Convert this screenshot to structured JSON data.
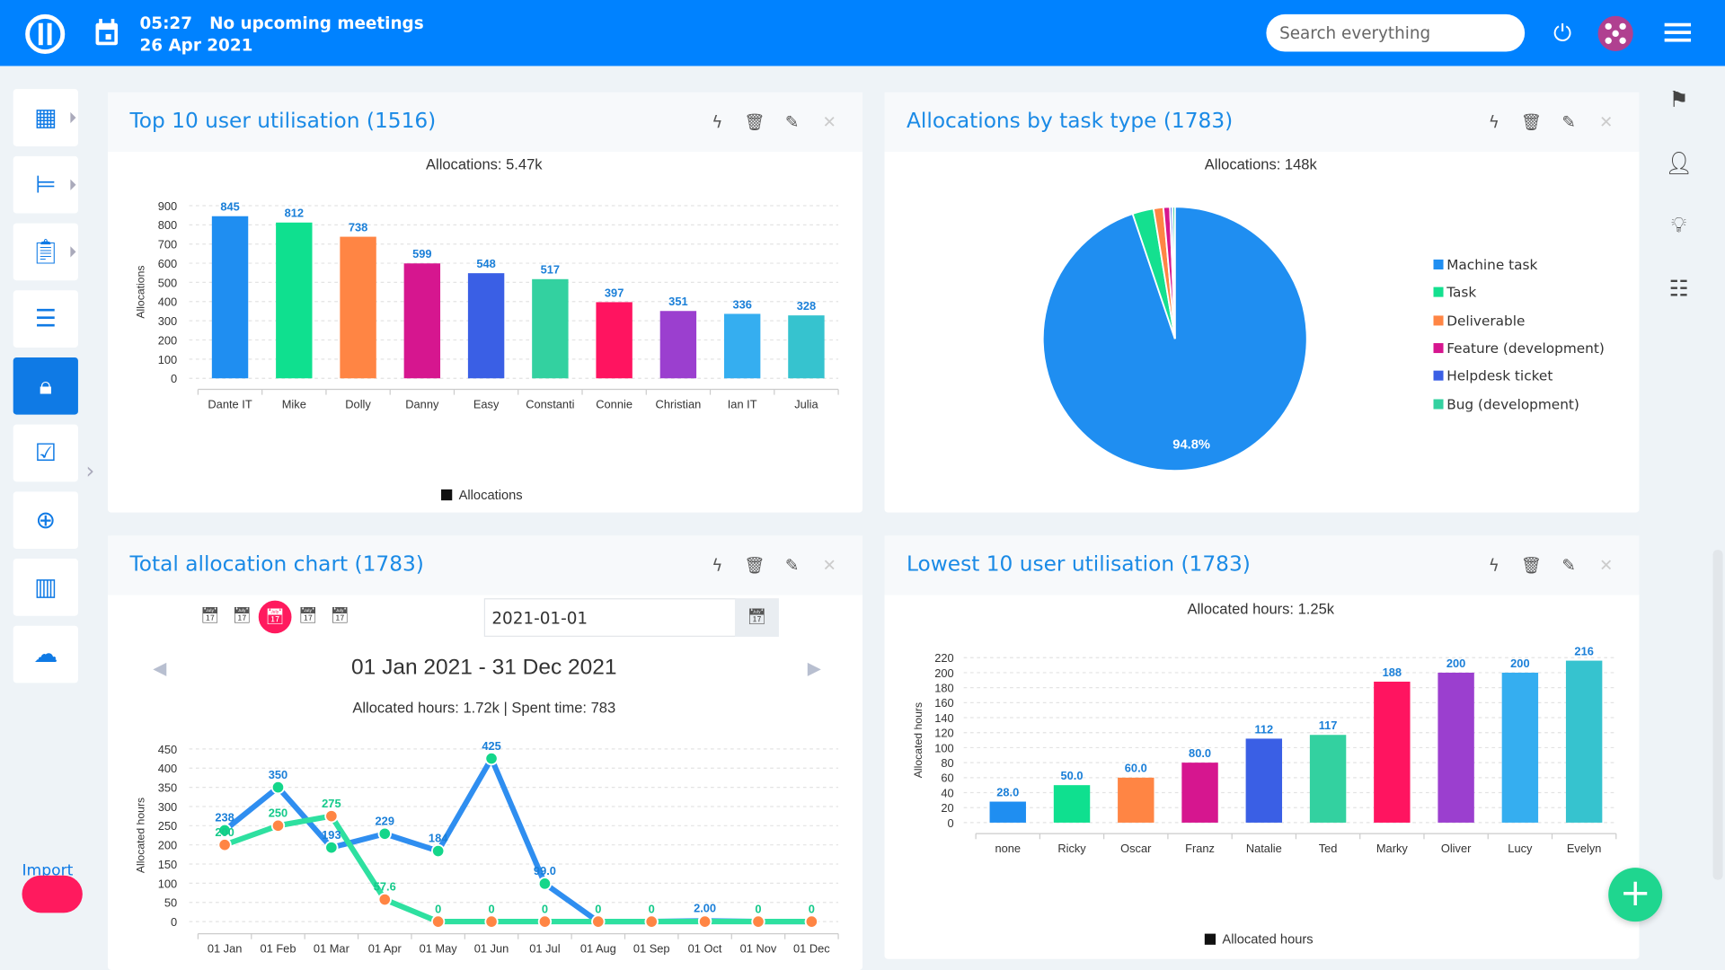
{
  "header": {
    "time": "05:27",
    "meetings": "No upcoming meetings",
    "date": "26 Apr 2021",
    "search_placeholder": "Search everything"
  },
  "sidebar": {
    "items": [
      {
        "name": "dashboard",
        "icon": "dashboard-icon"
      },
      {
        "name": "projects",
        "icon": "tree-icon"
      },
      {
        "name": "tasks",
        "icon": "clipboard-icon"
      },
      {
        "name": "checklist",
        "icon": "list-check-icon"
      },
      {
        "name": "administration",
        "icon": "lock-icon",
        "active": true
      },
      {
        "name": "todo",
        "icon": "check-square-icon"
      },
      {
        "name": "alarm",
        "icon": "alarm-plus-icon"
      },
      {
        "name": "reports",
        "icon": "bar-chart-icon"
      },
      {
        "name": "cloud",
        "icon": "cloud-icon"
      }
    ],
    "import_label": "Import"
  },
  "colors": {
    "brand": "#0082ff",
    "accent_pink": "#ff1a5e",
    "fab": "#1fd68f"
  },
  "panels": {
    "top_left": {
      "title": "Top 10 user utilisation (1516)"
    },
    "top_right": {
      "title": "Allocations by task type (1783)"
    },
    "bottom_left": {
      "title": "Total allocation chart (1783)",
      "date_value": "2021-01-01",
      "range": "01 Jan 2021 - 31 Dec 2021"
    },
    "bottom_right": {
      "title": "Lowest 10 user utilisation (1783)"
    }
  },
  "chart_data": [
    {
      "type": "bar",
      "subtitle": "Allocations: 5.47k",
      "ylabel": "Allocations",
      "ylim": [
        0,
        900
      ],
      "yticks": [
        0,
        100,
        200,
        300,
        400,
        500,
        600,
        700,
        800,
        900
      ],
      "categories": [
        "Dante IT",
        "Mike",
        "Dolly",
        "Danny",
        "Easy",
        "Constanti",
        "Connie",
        "Christian",
        "Ian IT",
        "Julia"
      ],
      "values": [
        845,
        812,
        738,
        599,
        548,
        517,
        397,
        351,
        336,
        328
      ],
      "labels": [
        "845",
        "812",
        "738",
        "599",
        "548",
        "517",
        "397",
        "351",
        "336",
        "328"
      ],
      "colors": [
        "#1f8ef1",
        "#0fe08f",
        "#ff8544",
        "#d6168f",
        "#3a5fe5",
        "#33d1a0",
        "#ff1460",
        "#9b3fcf",
        "#35aef0",
        "#36c3cf"
      ],
      "legend": "Allocations",
      "grid": true
    },
    {
      "type": "pie",
      "subtitle": "Allocations: 148k",
      "slices": [
        {
          "name": "Machine task",
          "value": 94.8,
          "color": "#1f8ef1"
        },
        {
          "name": "Task",
          "value": 2.6,
          "color": "#14e08f"
        },
        {
          "name": "Deliverable",
          "value": 1.2,
          "color": "#ff8544"
        },
        {
          "name": "Feature (development)",
          "value": 0.8,
          "color": "#d6168f"
        },
        {
          "name": "Helpdesk ticket",
          "value": 0.3,
          "color": "#3a5fe5"
        },
        {
          "name": "Bug (development)",
          "value": 0.3,
          "color": "#33d1a0"
        }
      ],
      "label": "94.8%",
      "legend": "right"
    },
    {
      "type": "line",
      "subtitle": "Allocated hours: 1.72k | Spent time: 783",
      "ylabel": "Allocated hours",
      "ylim": [
        0,
        450
      ],
      "yticks": [
        0,
        50,
        100,
        150,
        200,
        250,
        300,
        350,
        400,
        450
      ],
      "categories": [
        "01 Jan",
        "01 Feb",
        "01 Mar",
        "01 Apr",
        "01 May",
        "01 Jun",
        "01 Jul",
        "01 Aug",
        "01 Sep",
        "01 Oct",
        "01 Nov",
        "01 Dec"
      ],
      "series": [
        {
          "values": [
            238,
            350,
            193,
            229,
            184,
            425,
            99.0,
            0,
            0,
            2.0,
            0,
            0
          ],
          "labels": [
            "238",
            "350",
            "193",
            "229",
            "184",
            "425",
            "99.0",
            "",
            "",
            "2.00",
            "",
            ""
          ],
          "line_color": "#2f8ef0",
          "marker_color": "#14d68a",
          "label_color": "#1a7fd8"
        },
        {
          "values": [
            200,
            250,
            275,
            57.6,
            0,
            0,
            0,
            0,
            0,
            0,
            0,
            0
          ],
          "labels": [
            "200",
            "250",
            "275",
            "57.6",
            "0",
            "0",
            "0",
            "0",
            "0",
            "",
            "0",
            "0"
          ],
          "line_color": "#2ee0a0",
          "marker_color": "#ff8544",
          "label_color": "#14c98a"
        }
      ],
      "grid": true
    },
    {
      "type": "bar",
      "subtitle": "Allocated hours: 1.25k",
      "ylabel": "Allocated hours",
      "ylim": [
        0,
        220
      ],
      "yticks": [
        0,
        20,
        40,
        60,
        80,
        100,
        120,
        140,
        160,
        180,
        200,
        220
      ],
      "categories": [
        "none",
        "Ricky",
        "Oscar",
        "Franz",
        "Natalie",
        "Ted",
        "Marky",
        "Oliver",
        "Lucy",
        "Evelyn"
      ],
      "values": [
        28.0,
        50.0,
        60.0,
        80.0,
        112,
        117,
        188,
        200,
        200,
        216
      ],
      "labels": [
        "28.0",
        "50.0",
        "60.0",
        "80.0",
        "112",
        "117",
        "188",
        "200",
        "200",
        "216"
      ],
      "colors": [
        "#1f8ef1",
        "#0fe08f",
        "#ff8544",
        "#d6168f",
        "#3a5fe5",
        "#33d1a0",
        "#ff1460",
        "#9b3fcf",
        "#35aef0",
        "#36c3cf"
      ],
      "legend": "Allocated hours",
      "grid": true
    }
  ]
}
